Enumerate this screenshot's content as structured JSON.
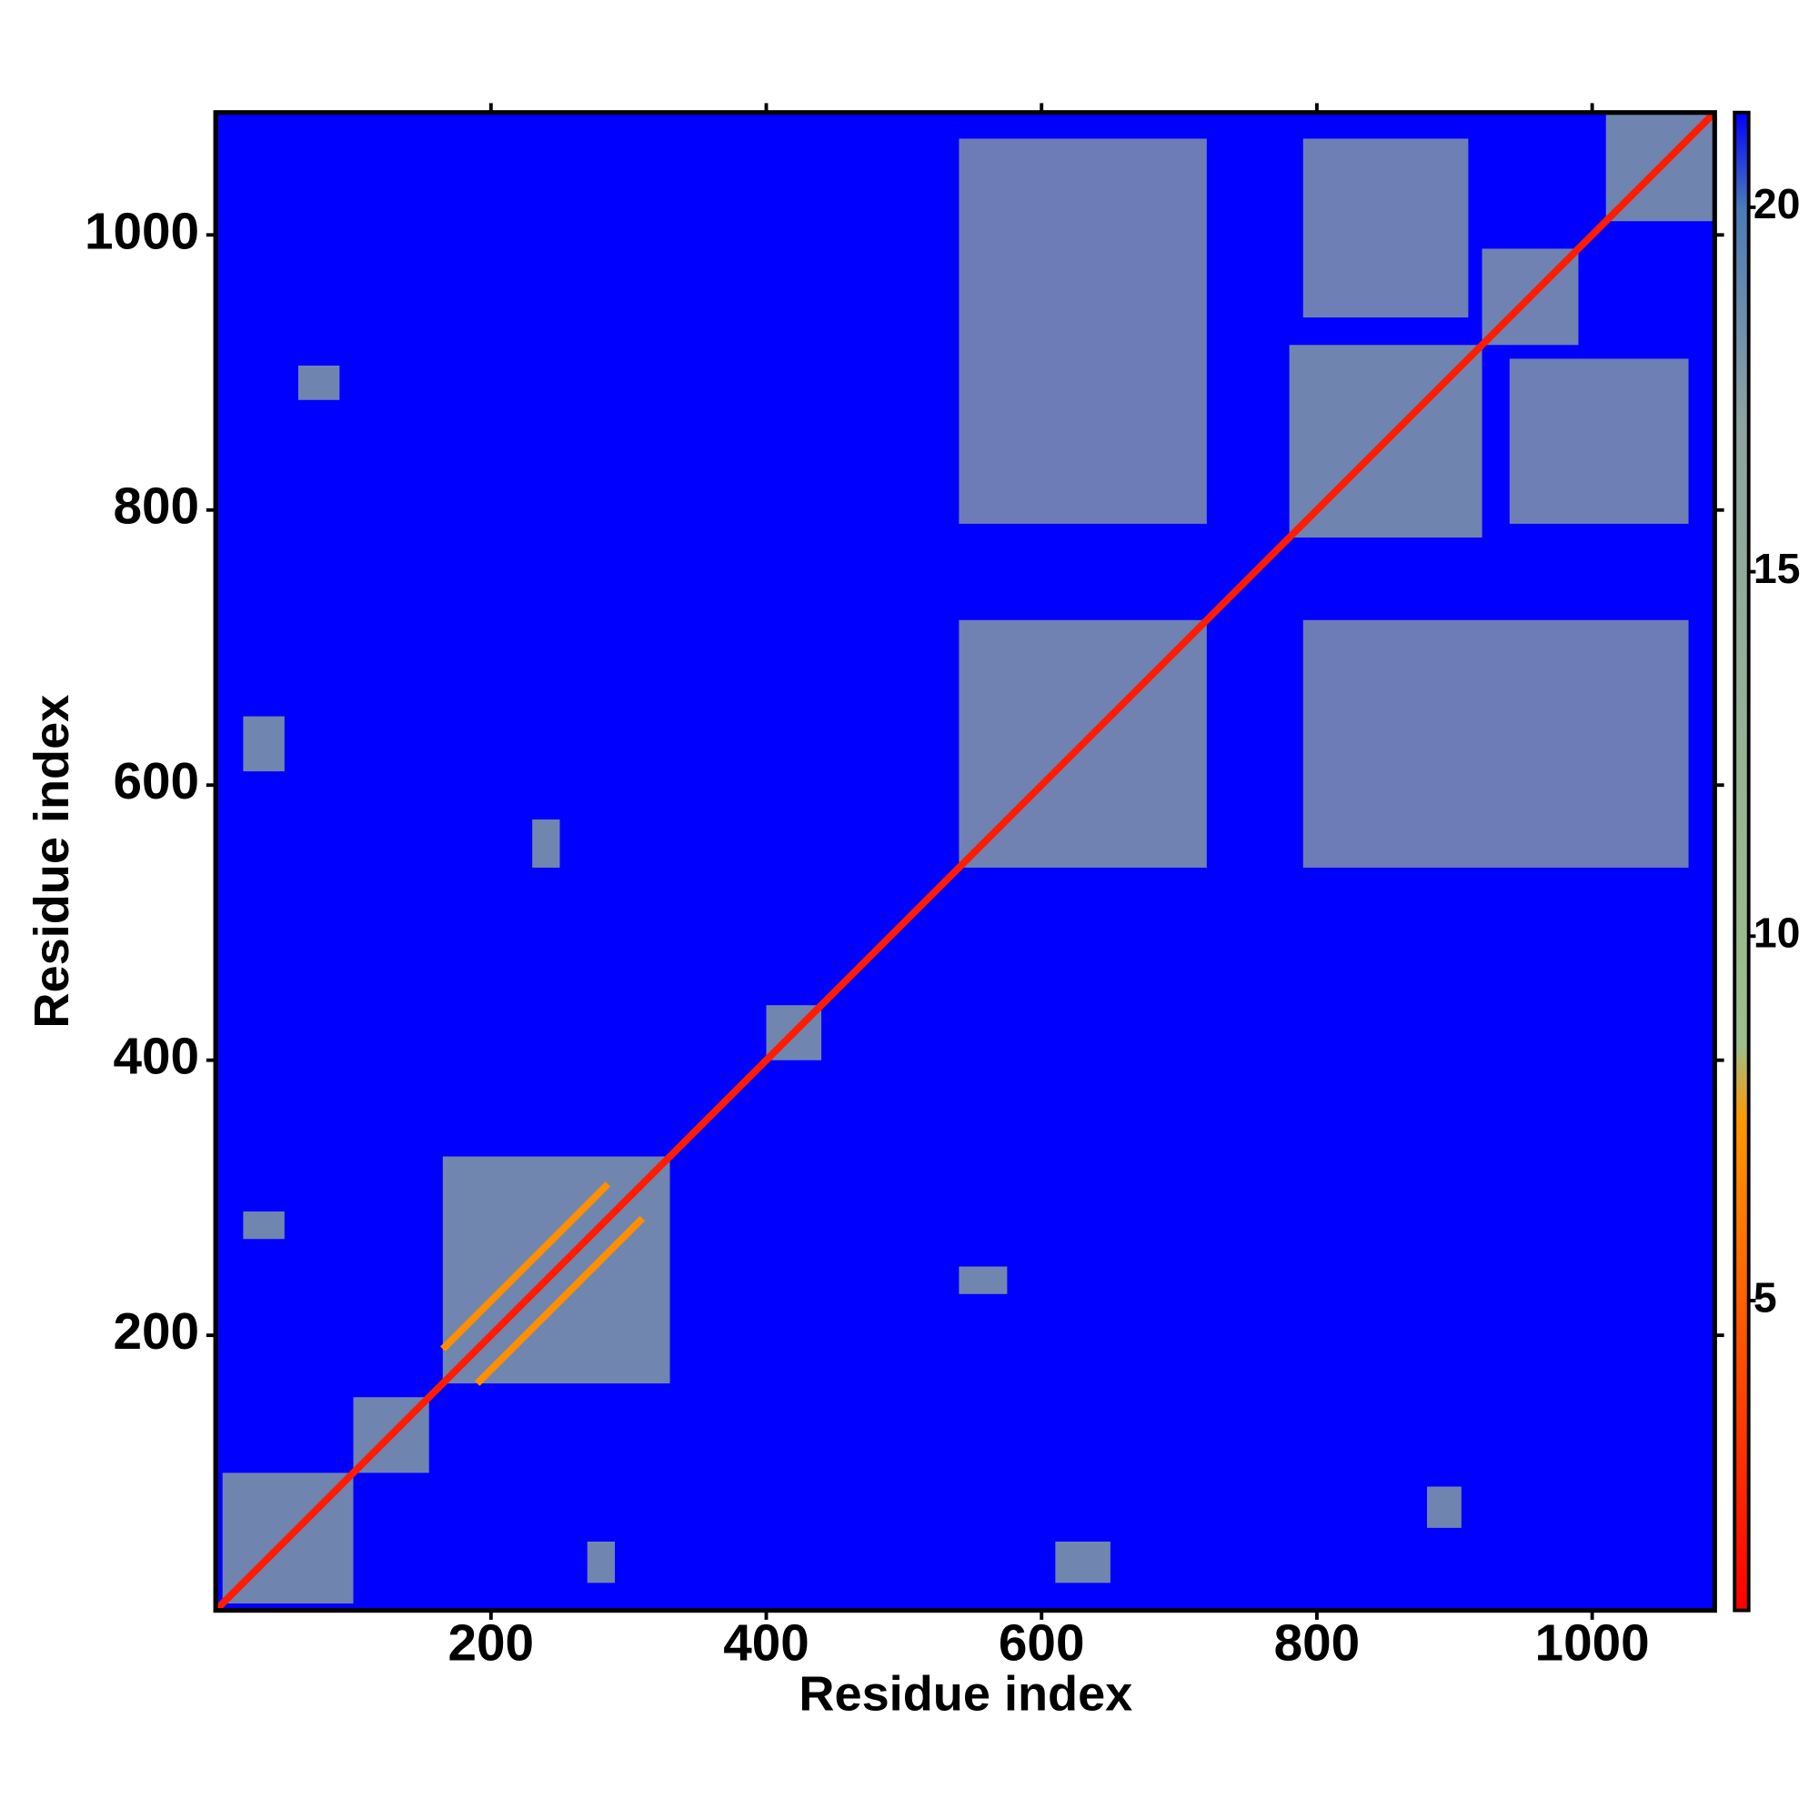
{
  "chart_data": {
    "type": "contact-map",
    "x_label": "Residue index",
    "y_label": "Residue index",
    "xlim": [
      0,
      1089
    ],
    "ylim": [
      0,
      1089
    ],
    "xticks": [
      200,
      400,
      600,
      800,
      1000
    ],
    "yticks": [
      200,
      400,
      600,
      800,
      1000
    ],
    "background_value": 21.3,
    "colorbar": {
      "lim": [
        0.75,
        21.3
      ],
      "ticks": [
        5,
        10,
        15,
        20
      ],
      "stops": [
        [
          0.75,
          "#ff0000"
        ],
        [
          7.5,
          "#ff9900"
        ],
        [
          8.5,
          "#9dbf8a"
        ],
        [
          17,
          "#8fa3a0"
        ],
        [
          20,
          "#4a7ab8"
        ],
        [
          21.3,
          "#0000ff"
        ]
      ]
    },
    "regions": [
      {
        "x": [
          165,
          330
        ],
        "y": [
          165,
          330
        ],
        "value": 12
      },
      {
        "x": [
          5,
          100
        ],
        "y": [
          5,
          100
        ],
        "value": 13
      },
      {
        "x": [
          100,
          155
        ],
        "y": [
          100,
          155
        ],
        "value": 13
      },
      {
        "x": [
          400,
          440
        ],
        "y": [
          400,
          440
        ],
        "value": 12
      },
      {
        "x": [
          540,
          720
        ],
        "y": [
          540,
          720
        ],
        "value": 14
      },
      {
        "x": [
          780,
          920
        ],
        "y": [
          780,
          920
        ],
        "value": 13
      },
      {
        "x": [
          920,
          990
        ],
        "y": [
          920,
          990
        ],
        "value": 14
      },
      {
        "x": [
          1010,
          1088
        ],
        "y": [
          1010,
          1088
        ],
        "value": 13
      },
      {
        "x": [
          20,
          50
        ],
        "y": [
          610,
          650
        ],
        "value": 12
      },
      {
        "x": [
          610,
          650
        ],
        "y": [
          20,
          50
        ],
        "value": 12
      },
      {
        "x": [
          20,
          50
        ],
        "y": [
          270,
          290
        ],
        "value": 12
      },
      {
        "x": [
          270,
          290
        ],
        "y": [
          20,
          50
        ],
        "value": 12
      },
      {
        "x": [
          230,
          250
        ],
        "y": [
          540,
          575
        ],
        "value": 12
      },
      {
        "x": [
          540,
          575
        ],
        "y": [
          230,
          250
        ],
        "value": 12
      },
      {
        "x": [
          60,
          90
        ],
        "y": [
          880,
          905
        ],
        "value": 13
      },
      {
        "x": [
          880,
          905
        ],
        "y": [
          60,
          90
        ],
        "value": 13
      },
      {
        "x": [
          790,
          910
        ],
        "y": [
          940,
          1070
        ],
        "value": 15
      },
      {
        "x": [
          940,
          1070
        ],
        "y": [
          790,
          910
        ],
        "value": 15
      },
      {
        "x": [
          540,
          720
        ],
        "y": [
          790,
          1070
        ],
        "value": 16
      },
      {
        "x": [
          790,
          1070
        ],
        "y": [
          540,
          720
        ],
        "value": 16
      }
    ],
    "lines": [
      {
        "x": [
          1,
          1088
        ],
        "y": [
          1,
          1088
        ],
        "value": 2
      },
      {
        "x": [
          190,
          310
        ],
        "y": [
          165,
          285
        ],
        "value": 7
      },
      {
        "x": [
          165,
          285
        ],
        "y": [
          190,
          310
        ],
        "value": 7
      }
    ]
  }
}
